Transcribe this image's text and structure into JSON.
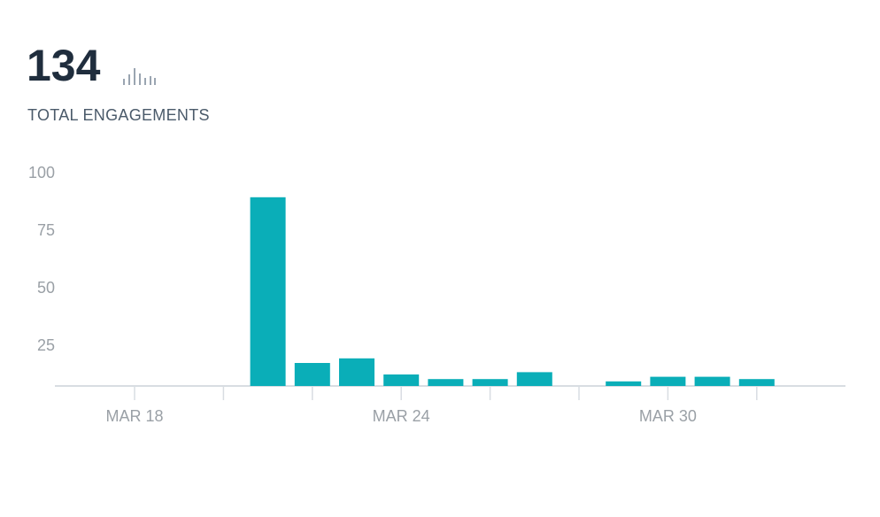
{
  "header": {
    "total": "134",
    "label": "TOTAL ENGAGEMENTS"
  },
  "chart_data": {
    "type": "bar",
    "categories": [
      null,
      "MAR 18",
      null,
      null,
      null,
      null,
      null,
      "MAR 24",
      null,
      null,
      null,
      null,
      null,
      "MAR 30",
      null,
      null,
      null
    ],
    "values": [
      0,
      0,
      0,
      0,
      82,
      10,
      12,
      5,
      3,
      3,
      6,
      0,
      2,
      4,
      4,
      3,
      0
    ],
    "color": "#0aaeb8",
    "ylim": [
      0,
      100
    ],
    "yticks": [
      25,
      50,
      75,
      100
    ],
    "grid": false
  }
}
